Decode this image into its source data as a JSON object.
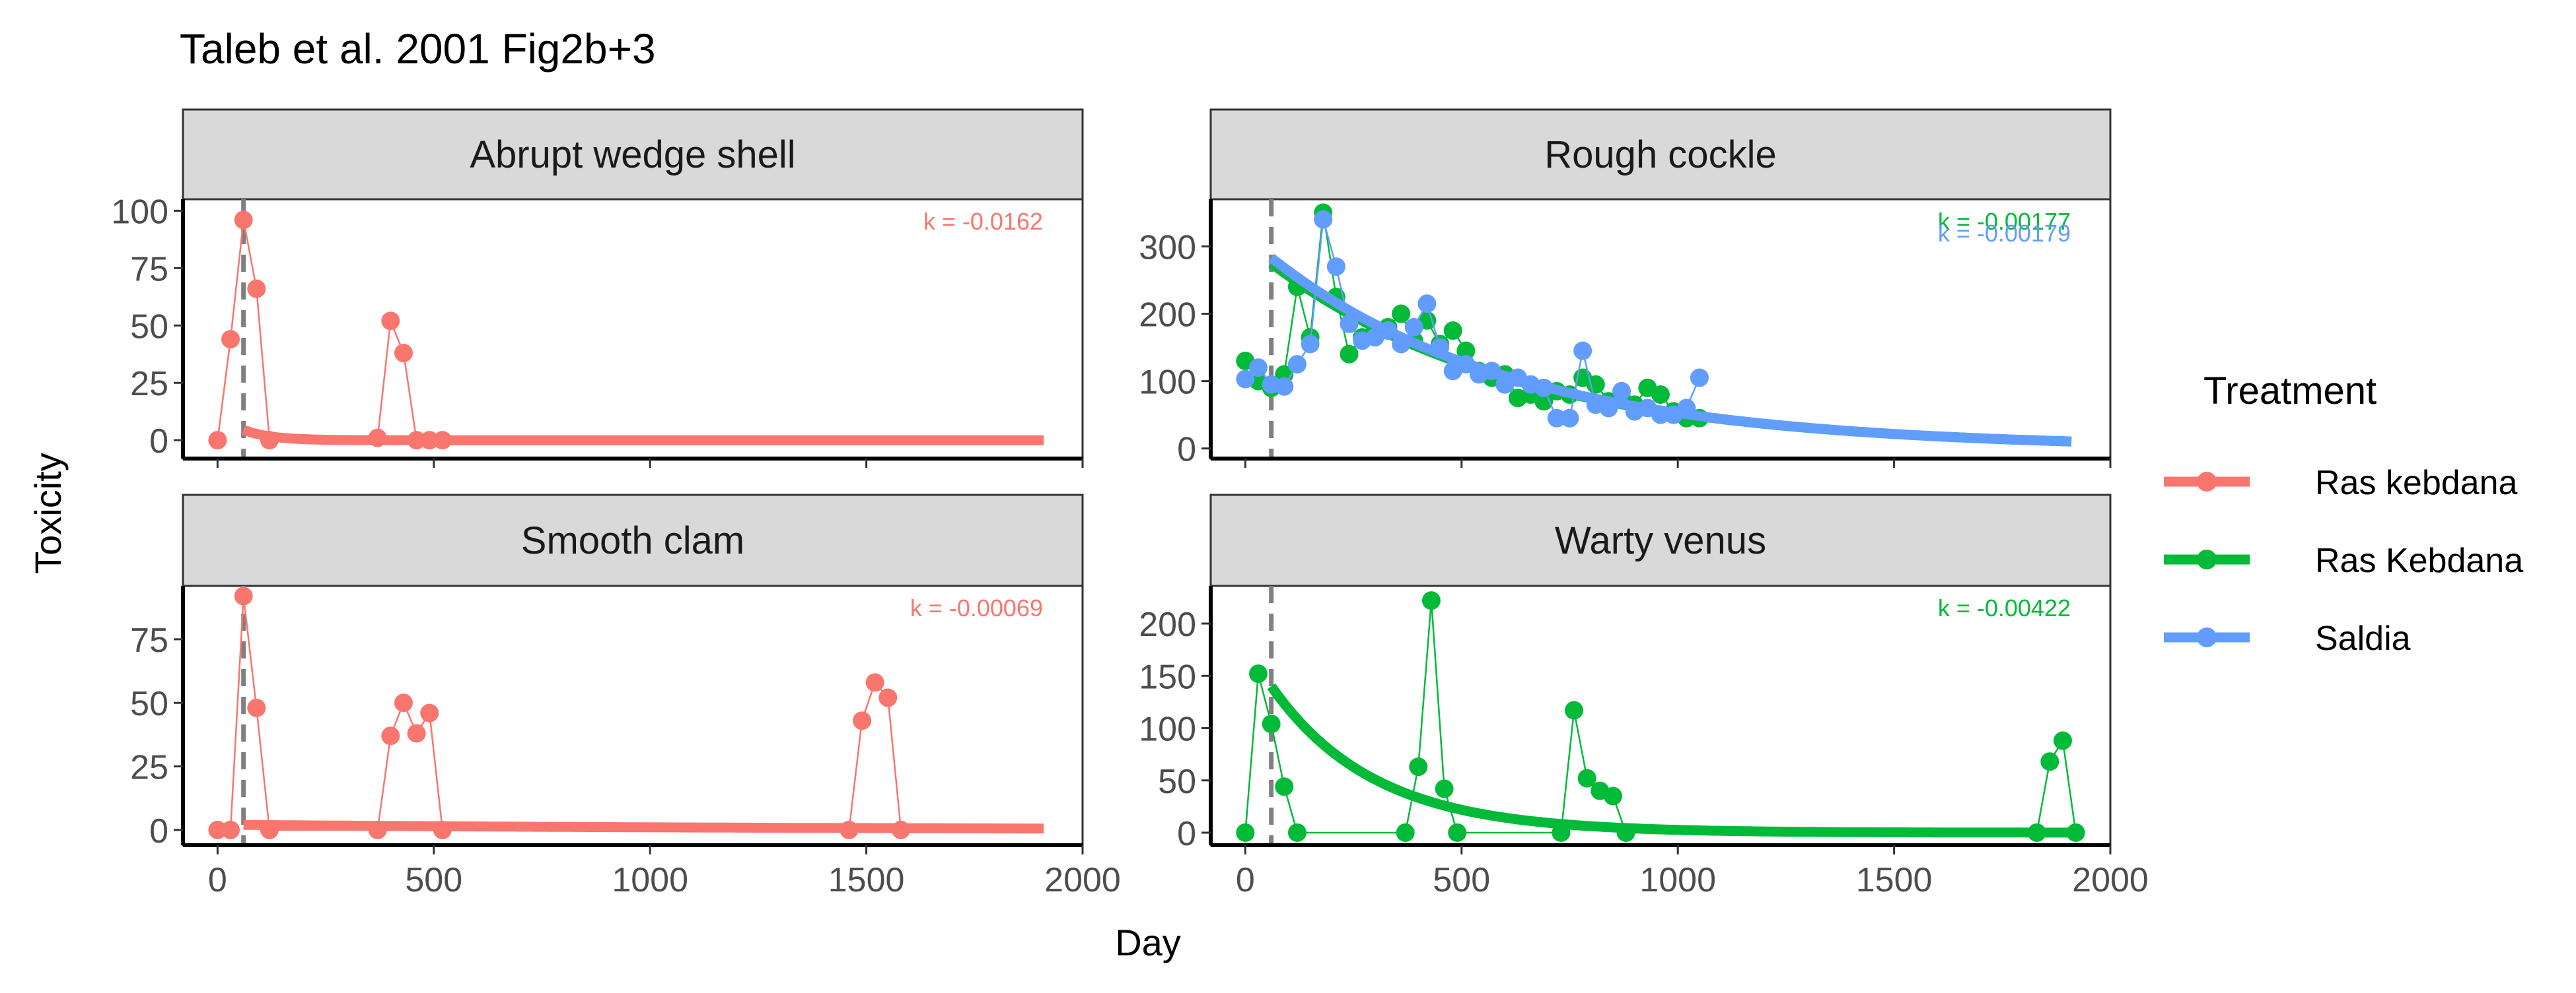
{
  "title": "Taleb et al. 2001 Fig2b+3",
  "xlabel": "Day",
  "ylabel": "Toxicity",
  "legend": {
    "title": "Treatment",
    "entries": [
      {
        "label": "Ras kebdana",
        "color": "#F8766D"
      },
      {
        "label": "Ras Kebdana",
        "color": "#00BA38"
      },
      {
        "label": "Saldia",
        "color": "#619CFF"
      }
    ]
  },
  "reference_line_day": 60,
  "chart_data": [
    {
      "type": "line",
      "panel": "Abrupt wedge shell",
      "xlim": [
        -80,
        2000
      ],
      "ylim": [
        -8,
        105
      ],
      "xticks": [
        0,
        500,
        1000,
        1500,
        2000
      ],
      "yticks": [
        0,
        25,
        50,
        75,
        100
      ],
      "series": [
        {
          "name": "Ras kebdana",
          "color": "#F8766D",
          "points": [
            [
              0,
              0
            ],
            [
              30,
              44
            ],
            [
              60,
              96
            ],
            [
              90,
              66
            ],
            [
              120,
              0
            ],
            [
              370,
              1
            ],
            [
              400,
              52
            ],
            [
              430,
              38
            ],
            [
              460,
              0
            ],
            [
              490,
              0
            ],
            [
              520,
              0
            ]
          ],
          "fit": {
            "k": "k = -0.0162",
            "rate": -0.0162,
            "y0": 4.5,
            "x_start": 60,
            "x_end": 1910
          }
        }
      ]
    },
    {
      "type": "line",
      "panel": "Rough cockle",
      "xlim": [
        -80,
        2000
      ],
      "ylim": [
        -15,
        370
      ],
      "xticks": [
        0,
        500,
        1000,
        1500,
        2000
      ],
      "yticks": [
        0,
        100,
        200,
        300
      ],
      "series": [
        {
          "name": "Ras Kebdana",
          "color": "#00BA38",
          "points": [
            [
              0,
              130
            ],
            [
              30,
              100
            ],
            [
              60,
              90
            ],
            [
              90,
              110
            ],
            [
              120,
              240
            ],
            [
              150,
              165
            ],
            [
              180,
              350
            ],
            [
              210,
              225
            ],
            [
              240,
              140
            ],
            [
              270,
              165
            ],
            [
              300,
              175
            ],
            [
              330,
              180
            ],
            [
              360,
              200
            ],
            [
              390,
              160
            ],
            [
              420,
              190
            ],
            [
              450,
              155
            ],
            [
              480,
              175
            ],
            [
              510,
              145
            ],
            [
              540,
              115
            ],
            [
              570,
              105
            ],
            [
              600,
              110
            ],
            [
              630,
              75
            ],
            [
              660,
              80
            ],
            [
              690,
              70
            ],
            [
              720,
              85
            ],
            [
              750,
              80
            ],
            [
              780,
              105
            ],
            [
              810,
              95
            ],
            [
              840,
              70
            ],
            [
              870,
              75
            ],
            [
              900,
              65
            ],
            [
              930,
              90
            ],
            [
              960,
              80
            ],
            [
              990,
              55
            ],
            [
              1020,
              45
            ],
            [
              1050,
              45
            ]
          ],
          "fit": {
            "k": "k = -0.00177",
            "rate": -0.00177,
            "y0": 275,
            "x_start": 60,
            "x_end": 1910
          }
        },
        {
          "name": "Saldia",
          "color": "#619CFF",
          "points": [
            [
              0,
              103
            ],
            [
              30,
              120
            ],
            [
              60,
              95
            ],
            [
              90,
              92
            ],
            [
              120,
              125
            ],
            [
              150,
              155
            ],
            [
              180,
              340
            ],
            [
              210,
              270
            ],
            [
              240,
              185
            ],
            [
              270,
              160
            ],
            [
              300,
              165
            ],
            [
              330,
              175
            ],
            [
              360,
              155
            ],
            [
              390,
              180
            ],
            [
              420,
              215
            ],
            [
              450,
              150
            ],
            [
              480,
              115
            ],
            [
              510,
              125
            ],
            [
              540,
              110
            ],
            [
              570,
              115
            ],
            [
              600,
              95
            ],
            [
              630,
              105
            ],
            [
              660,
              95
            ],
            [
              690,
              90
            ],
            [
              720,
              45
            ],
            [
              750,
              45
            ],
            [
              780,
              145
            ],
            [
              810,
              65
            ],
            [
              840,
              60
            ],
            [
              870,
              85
            ],
            [
              900,
              55
            ],
            [
              930,
              60
            ],
            [
              960,
              50
            ],
            [
              990,
              50
            ],
            [
              1020,
              60
            ],
            [
              1050,
              105
            ]
          ],
          "fit": {
            "k": "k = -0.00179",
            "rate": -0.00179,
            "y0": 283,
            "x_start": 60,
            "x_end": 1910
          }
        }
      ]
    },
    {
      "type": "line",
      "panel": "Smooth clam",
      "xlim": [
        -80,
        2000
      ],
      "ylim": [
        -6,
        96
      ],
      "xticks": [
        0,
        500,
        1000,
        1500,
        2000
      ],
      "yticks": [
        0,
        25,
        50,
        75
      ],
      "series": [
        {
          "name": "Ras kebdana",
          "color": "#F8766D",
          "points": [
            [
              0,
              0
            ],
            [
              30,
              0
            ],
            [
              60,
              92
            ],
            [
              90,
              48
            ],
            [
              120,
              0
            ],
            [
              370,
              0
            ],
            [
              400,
              37
            ],
            [
              430,
              50
            ],
            [
              460,
              38
            ],
            [
              490,
              46
            ],
            [
              520,
              0
            ],
            [
              1460,
              0
            ],
            [
              1490,
              43
            ],
            [
              1520,
              58
            ],
            [
              1550,
              52
            ],
            [
              1580,
              0
            ]
          ],
          "fit": {
            "k": "k = -0.00069",
            "rate": -0.00069,
            "y0": 2,
            "x_start": 60,
            "x_end": 1910
          }
        }
      ]
    },
    {
      "type": "line",
      "panel": "Warty venus",
      "xlim": [
        -80,
        2000
      ],
      "ylim": [
        -12,
        236
      ],
      "xticks": [
        0,
        500,
        1000,
        1500,
        2000
      ],
      "yticks": [
        0,
        50,
        100,
        150,
        200
      ],
      "series": [
        {
          "name": "Ras Kebdana",
          "color": "#00BA38",
          "points": [
            [
              0,
              0
            ],
            [
              30,
              152
            ],
            [
              60,
              104
            ],
            [
              90,
              44
            ],
            [
              120,
              0
            ],
            [
              370,
              0
            ],
            [
              400,
              63
            ],
            [
              430,
              222
            ],
            [
              460,
              42
            ],
            [
              490,
              0
            ],
            [
              730,
              0
            ],
            [
              760,
              117
            ],
            [
              790,
              52
            ],
            [
              820,
              40
            ],
            [
              850,
              35
            ],
            [
              880,
              0
            ],
            [
              1830,
              0
            ],
            [
              1860,
              68
            ],
            [
              1890,
              88
            ],
            [
              1920,
              0
            ]
          ],
          "fit": {
            "k": "k = -0.00422",
            "rate": -0.00422,
            "y0": 140,
            "x_start": 60,
            "x_end": 1910
          }
        }
      ]
    }
  ]
}
